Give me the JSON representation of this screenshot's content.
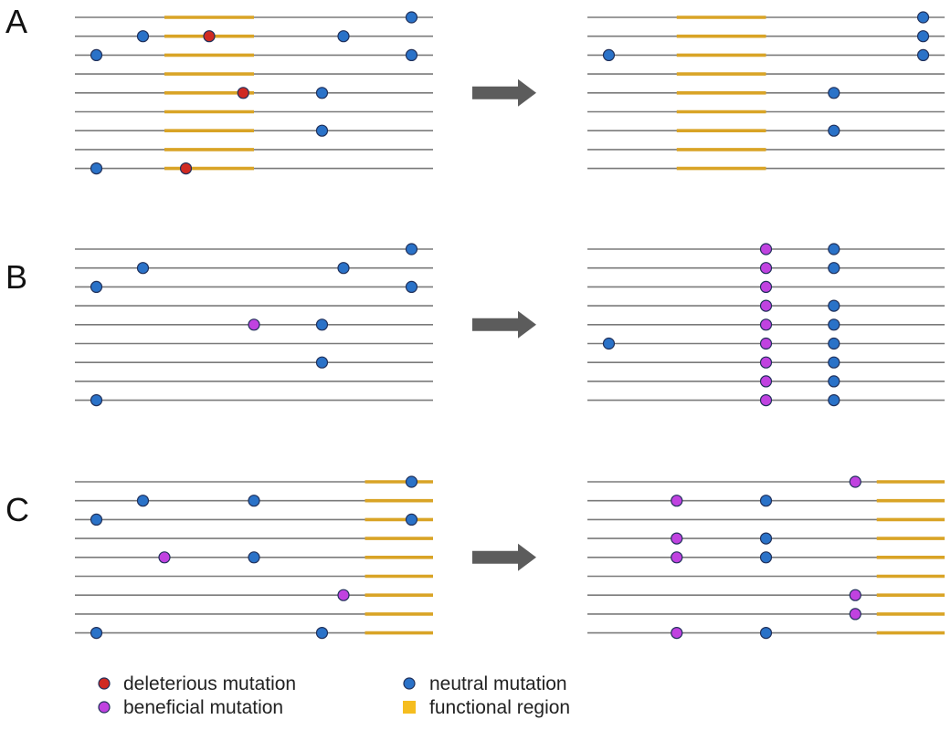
{
  "colors": {
    "line": "#7a7a7a",
    "functional": "#d9a426",
    "deleterious": "#d02a22",
    "neutral": "#2a72c8",
    "beneficial": "#c042e0",
    "arrow": "#5c5c5c",
    "marker_stroke": "#20305a"
  },
  "panels": [
    {
      "label": "A",
      "before": {
        "functional_region": {
          "from": 0.25,
          "to": 0.5
        },
        "mutations": [
          {
            "seq": 0,
            "pos": 0.94,
            "type": "neutral"
          },
          {
            "seq": 1,
            "pos": 0.19,
            "type": "neutral"
          },
          {
            "seq": 1,
            "pos": 0.375,
            "type": "deleterious"
          },
          {
            "seq": 1,
            "pos": 0.75,
            "type": "neutral"
          },
          {
            "seq": 2,
            "pos": 0.06,
            "type": "neutral"
          },
          {
            "seq": 2,
            "pos": 0.94,
            "type": "neutral"
          },
          {
            "seq": 4,
            "pos": 0.47,
            "type": "deleterious"
          },
          {
            "seq": 4,
            "pos": 0.69,
            "type": "neutral"
          },
          {
            "seq": 6,
            "pos": 0.69,
            "type": "neutral"
          },
          {
            "seq": 8,
            "pos": 0.06,
            "type": "neutral"
          },
          {
            "seq": 8,
            "pos": 0.31,
            "type": "deleterious"
          }
        ]
      },
      "after": {
        "functional_region": {
          "from": 0.25,
          "to": 0.5
        },
        "mutations": [
          {
            "seq": 0,
            "pos": 0.94,
            "type": "neutral"
          },
          {
            "seq": 1,
            "pos": 0.94,
            "type": "neutral"
          },
          {
            "seq": 2,
            "pos": 0.06,
            "type": "neutral"
          },
          {
            "seq": 2,
            "pos": 0.94,
            "type": "neutral"
          },
          {
            "seq": 4,
            "pos": 0.69,
            "type": "neutral"
          },
          {
            "seq": 6,
            "pos": 0.69,
            "type": "neutral"
          }
        ]
      }
    },
    {
      "label": "B",
      "before": {
        "functional_region": null,
        "mutations": [
          {
            "seq": 0,
            "pos": 0.94,
            "type": "neutral"
          },
          {
            "seq": 1,
            "pos": 0.19,
            "type": "neutral"
          },
          {
            "seq": 1,
            "pos": 0.75,
            "type": "neutral"
          },
          {
            "seq": 2,
            "pos": 0.06,
            "type": "neutral"
          },
          {
            "seq": 2,
            "pos": 0.94,
            "type": "neutral"
          },
          {
            "seq": 4,
            "pos": 0.5,
            "type": "beneficial"
          },
          {
            "seq": 4,
            "pos": 0.69,
            "type": "neutral"
          },
          {
            "seq": 6,
            "pos": 0.69,
            "type": "neutral"
          },
          {
            "seq": 8,
            "pos": 0.06,
            "type": "neutral"
          }
        ]
      },
      "after": {
        "functional_region": null,
        "mutations": [
          {
            "seq": 0,
            "pos": 0.5,
            "type": "beneficial"
          },
          {
            "seq": 0,
            "pos": 0.69,
            "type": "neutral"
          },
          {
            "seq": 1,
            "pos": 0.5,
            "type": "beneficial"
          },
          {
            "seq": 1,
            "pos": 0.69,
            "type": "neutral"
          },
          {
            "seq": 2,
            "pos": 0.5,
            "type": "beneficial"
          },
          {
            "seq": 3,
            "pos": 0.5,
            "type": "beneficial"
          },
          {
            "seq": 3,
            "pos": 0.69,
            "type": "neutral"
          },
          {
            "seq": 4,
            "pos": 0.5,
            "type": "beneficial"
          },
          {
            "seq": 4,
            "pos": 0.69,
            "type": "neutral"
          },
          {
            "seq": 5,
            "pos": 0.06,
            "type": "neutral"
          },
          {
            "seq": 5,
            "pos": 0.5,
            "type": "beneficial"
          },
          {
            "seq": 5,
            "pos": 0.69,
            "type": "neutral"
          },
          {
            "seq": 6,
            "pos": 0.5,
            "type": "beneficial"
          },
          {
            "seq": 6,
            "pos": 0.69,
            "type": "neutral"
          },
          {
            "seq": 7,
            "pos": 0.5,
            "type": "beneficial"
          },
          {
            "seq": 7,
            "pos": 0.69,
            "type": "neutral"
          },
          {
            "seq": 8,
            "pos": 0.5,
            "type": "beneficial"
          },
          {
            "seq": 8,
            "pos": 0.69,
            "type": "neutral"
          }
        ]
      }
    },
    {
      "label": "C",
      "before": {
        "functional_region": {
          "from": 0.81,
          "to": 1.0
        },
        "mutations": [
          {
            "seq": 0,
            "pos": 0.94,
            "type": "neutral"
          },
          {
            "seq": 1,
            "pos": 0.19,
            "type": "neutral"
          },
          {
            "seq": 1,
            "pos": 0.5,
            "type": "neutral"
          },
          {
            "seq": 2,
            "pos": 0.06,
            "type": "neutral"
          },
          {
            "seq": 2,
            "pos": 0.94,
            "type": "neutral"
          },
          {
            "seq": 4,
            "pos": 0.25,
            "type": "beneficial"
          },
          {
            "seq": 4,
            "pos": 0.5,
            "type": "neutral"
          },
          {
            "seq": 6,
            "pos": 0.75,
            "type": "beneficial"
          },
          {
            "seq": 8,
            "pos": 0.06,
            "type": "neutral"
          },
          {
            "seq": 8,
            "pos": 0.69,
            "type": "neutral"
          }
        ]
      },
      "after": {
        "functional_region": {
          "from": 0.81,
          "to": 1.0
        },
        "mutations": [
          {
            "seq": 0,
            "pos": 0.75,
            "type": "beneficial"
          },
          {
            "seq": 1,
            "pos": 0.25,
            "type": "beneficial"
          },
          {
            "seq": 1,
            "pos": 0.5,
            "type": "neutral"
          },
          {
            "seq": 3,
            "pos": 0.25,
            "type": "beneficial"
          },
          {
            "seq": 3,
            "pos": 0.5,
            "type": "neutral"
          },
          {
            "seq": 4,
            "pos": 0.25,
            "type": "beneficial"
          },
          {
            "seq": 4,
            "pos": 0.5,
            "type": "neutral"
          },
          {
            "seq": 6,
            "pos": 0.75,
            "type": "beneficial"
          },
          {
            "seq": 7,
            "pos": 0.75,
            "type": "beneficial"
          },
          {
            "seq": 8,
            "pos": 0.25,
            "type": "beneficial"
          },
          {
            "seq": 8,
            "pos": 0.5,
            "type": "neutral"
          }
        ]
      }
    }
  ],
  "legend": {
    "deleterious": "deleterious mutation",
    "beneficial": "beneficial mutation",
    "neutral": "neutral mutation",
    "functional": "functional region"
  }
}
